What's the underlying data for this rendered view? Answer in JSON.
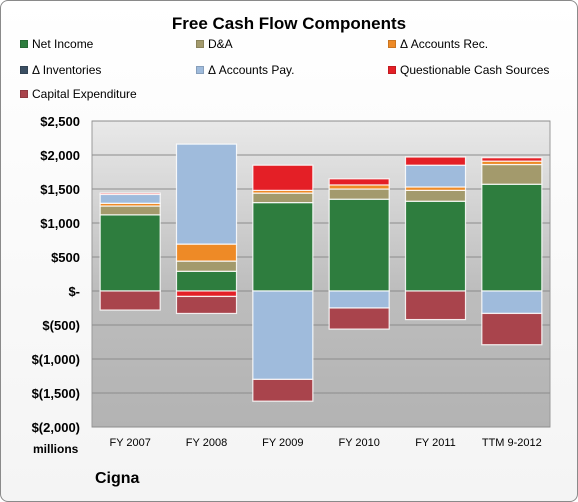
{
  "chart_data": {
    "type": "bar",
    "stacked": true,
    "title": "Free Cash Flow Components",
    "units_label": "millions",
    "company": "Cigna",
    "xlabel": "",
    "ylabel": "",
    "categories": [
      "FY 2007",
      "FY 2008",
      "FY 2009",
      "FY 2010",
      "FY 2011",
      "TTM 9-2012"
    ],
    "ylim": [
      -2000,
      2500
    ],
    "yticks": [
      2500,
      2000,
      1500,
      1000,
      500,
      0,
      -500,
      -1000,
      -1500,
      -2000
    ],
    "ytick_labels": [
      "$2,500",
      "$2,000",
      "$1,500",
      "$1,000",
      "$500",
      "$-",
      "$(500)",
      "$(1,000)",
      "$(1,500)",
      "$(2,000)"
    ],
    "legend_placement": "top",
    "series": [
      {
        "name": "Net Income",
        "color": "#2e7d3e",
        "values": [
          1120,
          290,
          1300,
          1350,
          1320,
          1570
        ]
      },
      {
        "name": "D&A",
        "color": "#a39a6c",
        "values": [
          130,
          150,
          140,
          150,
          160,
          290
        ]
      },
      {
        "name": "Δ Accounts Rec.",
        "color": "#ee8a26",
        "values": [
          40,
          250,
          40,
          60,
          50,
          50
        ]
      },
      {
        "name": "Δ Inventories",
        "color": "#3b4f63",
        "values": [
          0,
          0,
          0,
          0,
          0,
          0
        ]
      },
      {
        "name": "Δ Accounts Pay.",
        "color": "#9fbbdc",
        "values": [
          130,
          1470,
          -1300,
          -250,
          320,
          -330
        ]
      },
      {
        "name": "Questionable Cash Sources",
        "color": "#e41f26",
        "values": [
          20,
          -80,
          370,
          90,
          120,
          50
        ]
      },
      {
        "name": "Capital Expenditure",
        "color": "#a9444c",
        "values": [
          -280,
          -250,
          -320,
          -310,
          -420,
          -460
        ]
      }
    ]
  }
}
